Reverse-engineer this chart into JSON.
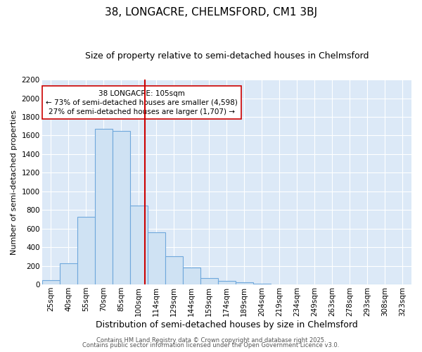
{
  "title1": "38, LONGACRE, CHELMSFORD, CM1 3BJ",
  "title2": "Size of property relative to semi-detached houses in Chelmsford",
  "xlabel": "Distribution of semi-detached houses by size in Chelmsford",
  "ylabel": "Number of semi-detached properties",
  "categories": [
    "25sqm",
    "40sqm",
    "55sqm",
    "70sqm",
    "85sqm",
    "100sqm",
    "114sqm",
    "129sqm",
    "144sqm",
    "159sqm",
    "174sqm",
    "189sqm",
    "204sqm",
    "219sqm",
    "234sqm",
    "249sqm",
    "263sqm",
    "278sqm",
    "293sqm",
    "308sqm",
    "323sqm"
  ],
  "values": [
    45,
    225,
    725,
    1670,
    1650,
    850,
    560,
    300,
    180,
    65,
    35,
    20,
    5,
    0,
    0,
    0,
    0,
    0,
    0,
    0,
    0
  ],
  "bar_color": "#cfe2f3",
  "bar_edge_color": "#6fa8dc",
  "vline_color": "#cc0000",
  "vline_pos": 5.35,
  "annotation_text": "38 LONGACRE: 105sqm\n← 73% of semi-detached houses are smaller (4,598)\n27% of semi-detached houses are larger (1,707) →",
  "annotation_box_color": "#ffffff",
  "annotation_box_edge": "#cc0000",
  "ylim": [
    0,
    2200
  ],
  "yticks": [
    0,
    200,
    400,
    600,
    800,
    1000,
    1200,
    1400,
    1600,
    1800,
    2000,
    2200
  ],
  "footer1": "Contains HM Land Registry data © Crown copyright and database right 2025.",
  "footer2": "Contains public sector information licensed under the Open Government Licence v3.0.",
  "bg_color": "#ffffff",
  "plot_bg_color": "#dce9f7",
  "grid_color": "#ffffff",
  "title1_fontsize": 11,
  "title2_fontsize": 9,
  "annotation_fontsize": 7.5,
  "xlabel_fontsize": 9,
  "ylabel_fontsize": 8,
  "tick_fontsize": 7.5,
  "footer_fontsize": 6
}
